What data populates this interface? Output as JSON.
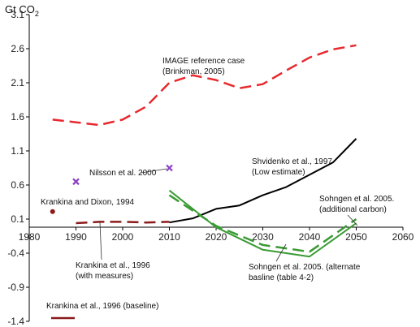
{
  "chart_data": {
    "type": "line",
    "unit_label": "Gt CO",
    "unit_subscript": "2",
    "xlim": [
      1980,
      2060
    ],
    "ylim": [
      -1.4,
      3.1
    ],
    "x_ticks": [
      1980,
      1990,
      2000,
      2010,
      2020,
      2030,
      2040,
      2050,
      2060
    ],
    "y_ticks": [
      3.1,
      2.6,
      2.1,
      1.6,
      1.1,
      0.6,
      0.1,
      -0.4,
      -0.9,
      -1.4
    ],
    "grid": false,
    "legend": "bottom-left",
    "series": [
      {
        "name": "IMAGE reference case (Brinkman, 2005)",
        "color": "#e8292e",
        "style": "dashed",
        "x": [
          1985,
          1990,
          1995,
          2000,
          2005,
          2010,
          2015,
          2020,
          2025,
          2030,
          2035,
          2040,
          2045,
          2050
        ],
        "y": [
          1.56,
          1.52,
          1.48,
          1.56,
          1.75,
          2.1,
          2.21,
          2.14,
          2.02,
          2.08,
          2.28,
          2.47,
          2.59,
          2.65
        ]
      },
      {
        "name": "Shvidenko et al., 1997 (Low estimate)",
        "color": "#000000",
        "style": "solid",
        "x": [
          2010,
          2015,
          2020,
          2025,
          2030,
          2035,
          2040,
          2045,
          2050
        ],
        "y": [
          0.05,
          0.11,
          0.25,
          0.3,
          0.45,
          0.57,
          0.75,
          0.93,
          1.28
        ]
      },
      {
        "name": "Sohngen et al. 2005. (additional carbon)",
        "color": "#3a9a34",
        "style": "dashed",
        "x": [
          2010,
          2020,
          2030,
          2040,
          2050
        ],
        "y": [
          0.45,
          0.0,
          -0.28,
          -0.38,
          0.1
        ]
      },
      {
        "name": "Sohngen et al. 2005. (alternate basline (table 4-2)",
        "color": "#3a9a34",
        "style": "solid",
        "x": [
          2010,
          2020,
          2030,
          2040,
          2050
        ],
        "y": [
          0.52,
          -0.02,
          -0.35,
          -0.45,
          0.04
        ]
      },
      {
        "name": "Krankina et al., 1996 (with measures)",
        "color": "#8b1a1a",
        "style": "dashed",
        "x": [
          1990,
          1995,
          2000,
          2005,
          2010
        ],
        "y": [
          0.04,
          0.06,
          0.06,
          0.05,
          0.06
        ]
      }
    ],
    "points": [
      {
        "name": "Nilsson et al. 2000",
        "color": "#8b3fc4",
        "marker": "x",
        "x": [
          1990,
          2010
        ],
        "y": [
          0.65,
          0.85
        ]
      },
      {
        "name": "Krankina and Dixon, 1994",
        "color": "#8b1a1a",
        "marker": "circle",
        "x": [
          1985
        ],
        "y": [
          0.21
        ]
      }
    ],
    "annotations": {
      "image_line1": "IMAGE reference case",
      "image_line2": "(Brinkman, 2005)",
      "nilsson": "Nilsson et al. 2000",
      "krankina_dixon": "Krankina and Dixon, 1994",
      "shvidenko_line1": "Shvidenko et al., 1997",
      "shvidenko_line2": "(Low estimate)",
      "sohngen_add_line1": "Sohngen et al. 2005.",
      "sohngen_add_line2": "(additional carbon)",
      "krankina_measures_line1": "Krankina et al., 1996",
      "krankina_measures_line2": "(with measures)",
      "sohngen_alt_line1": "Sohngen et al. 2005. (alternate",
      "sohngen_alt_line2": "basline (table 4-2)"
    },
    "legend_entries": [
      {
        "label": "Krankina et al., 1996 (baseline)",
        "color": "#8b1a1a",
        "style": "solid"
      }
    ]
  }
}
